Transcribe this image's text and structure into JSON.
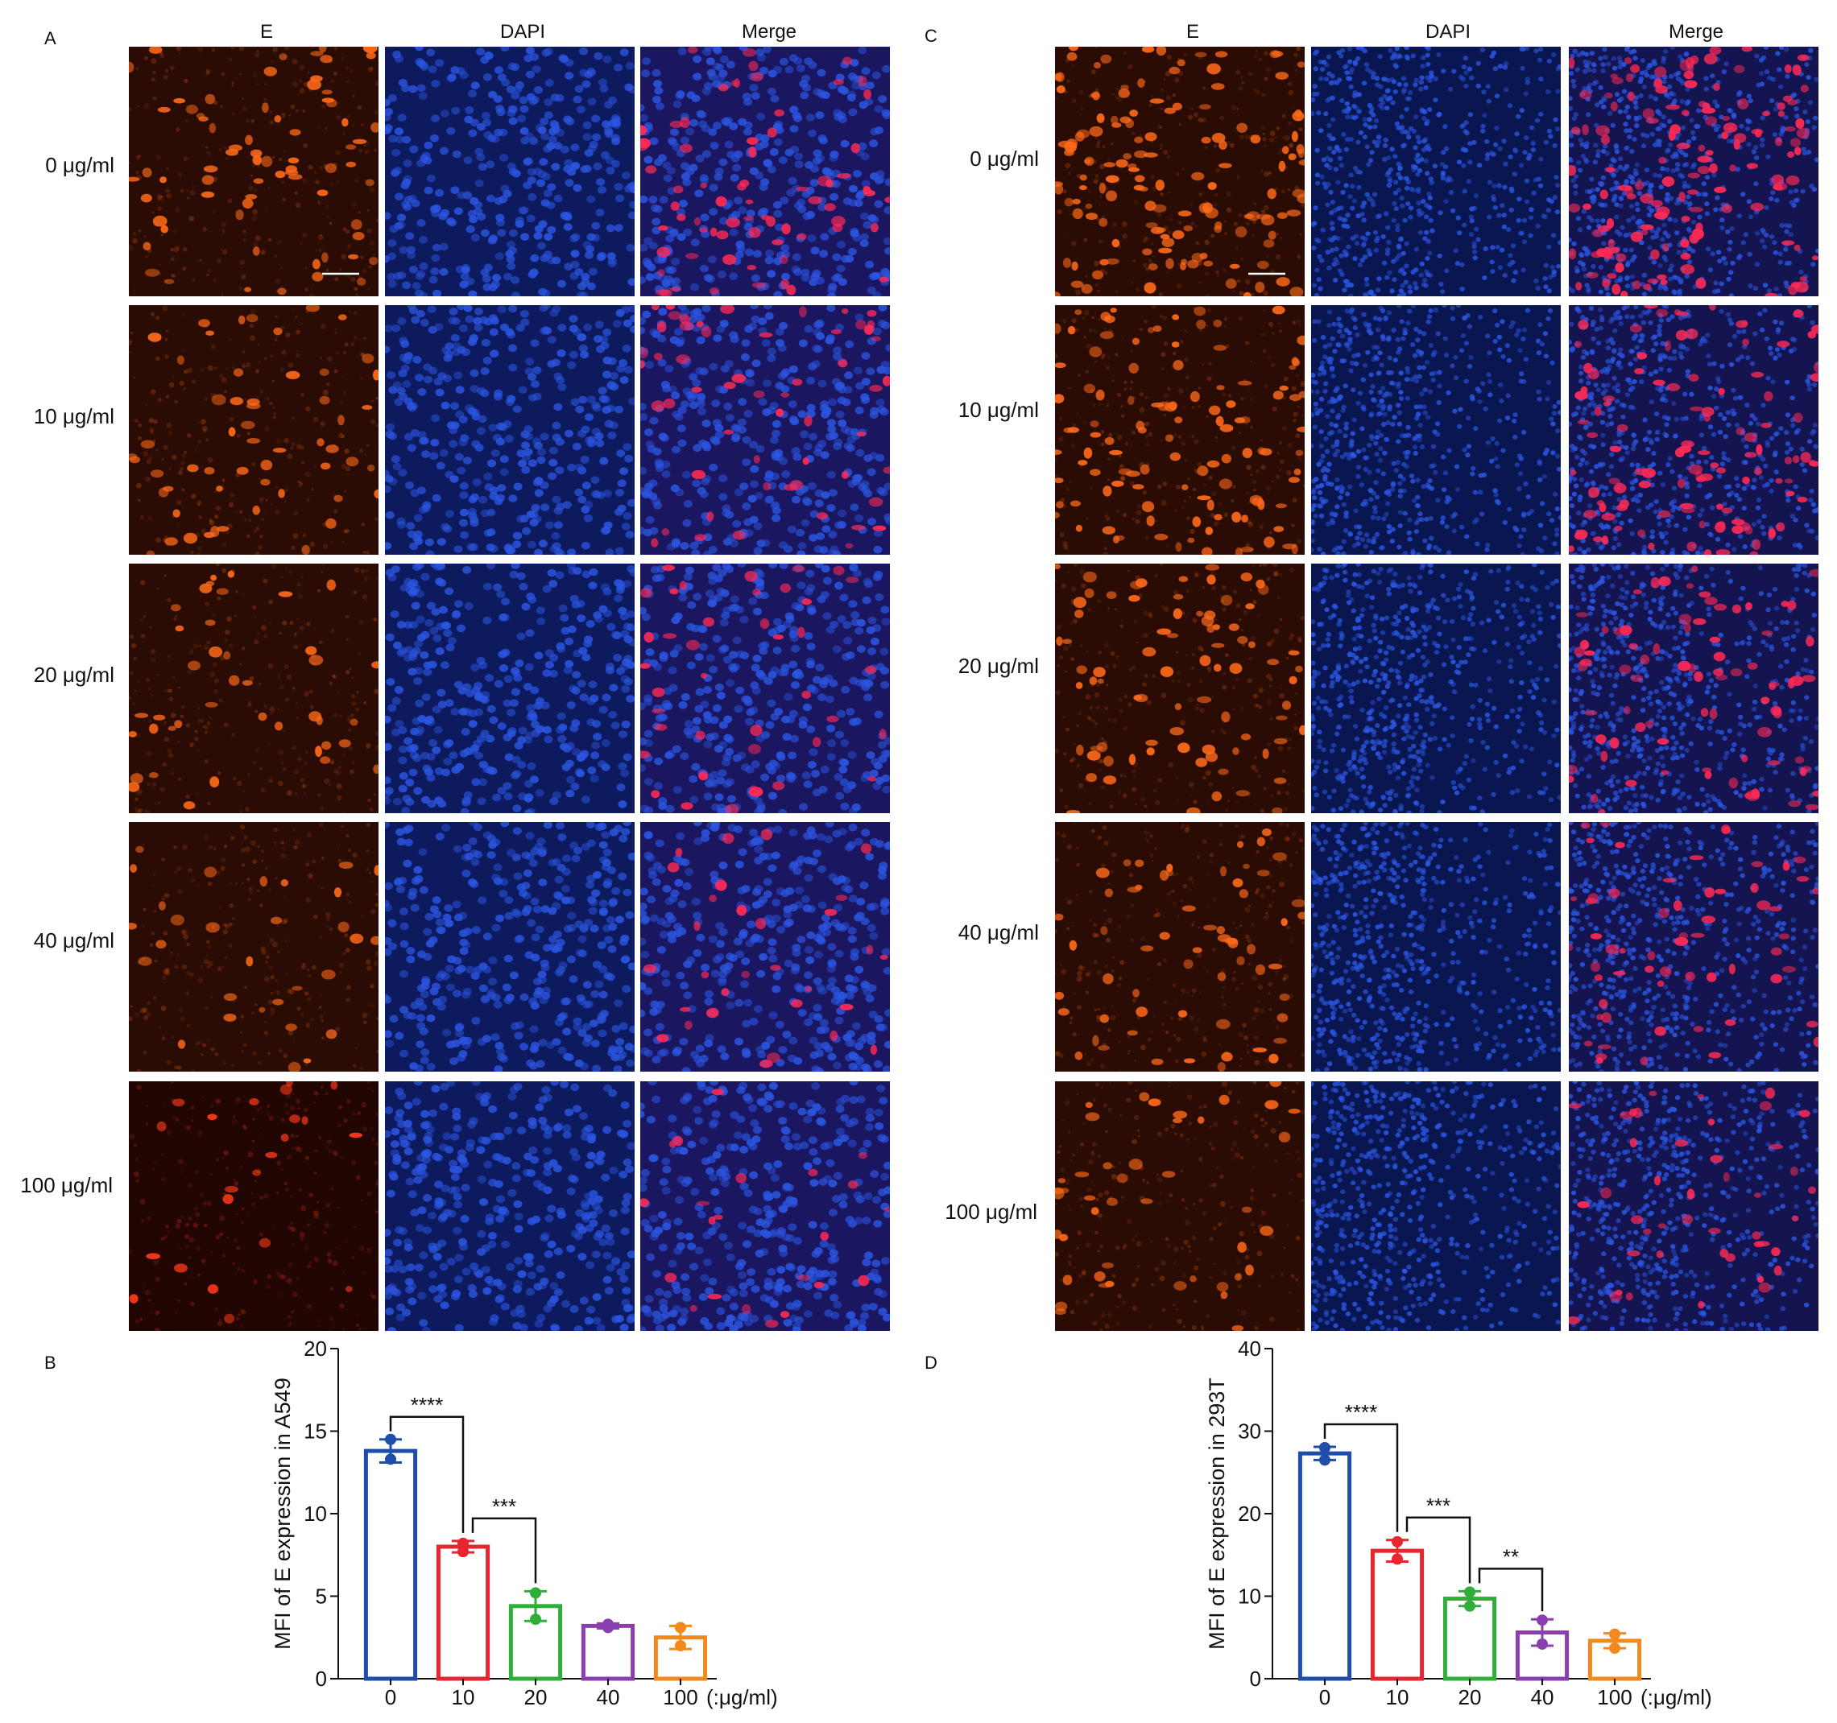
{
  "panels": {
    "A": {
      "letter": "A",
      "columns": [
        "E",
        "DAPI",
        "Merge"
      ],
      "rows": [
        "0 μg/ml",
        "10 μg/ml",
        "20 μg/ml",
        "40 μg/ml",
        "100 μg/ml"
      ],
      "scale_bar": "present"
    },
    "C": {
      "letter": "C",
      "columns": [
        "E",
        "DAPI",
        "Merge"
      ],
      "rows": [
        "0 μg/ml",
        "10 μg/ml",
        "20 μg/ml",
        "40 μg/ml",
        "100 μg/ml"
      ],
      "scale_bar": "present"
    },
    "B": {
      "letter": "B"
    },
    "D": {
      "letter": "D"
    }
  },
  "colors": {
    "stain_E": "#ff6a1a",
    "stain_DAPI": "#2b55e0",
    "merge_red": "#ff2a55",
    "bar_0": "#1f4ea8",
    "bar_10": "#e8262f",
    "bar_20": "#2fae3a",
    "bar_40": "#8a3fb0",
    "bar_100": "#f08a1e"
  },
  "chart_data": [
    {
      "type": "bar",
      "panel": "B",
      "categories": [
        "0",
        "10",
        "20",
        "40",
        "100"
      ],
      "unit_label": "(:μg/ml)",
      "values": [
        13.8,
        8.0,
        4.4,
        3.2,
        2.5
      ],
      "errors": [
        0.7,
        0.35,
        0.9,
        0.15,
        0.7
      ],
      "points": [
        [
          14.5,
          13.3
        ],
        [
          8.2,
          7.7
        ],
        [
          5.2,
          3.6
        ],
        [
          3.3,
          3.1
        ],
        [
          3.1,
          2.0
        ]
      ],
      "ylabel": "MFI of E expression in A549",
      "ylim": [
        0,
        20
      ],
      "yticks": [
        0,
        5,
        10,
        15,
        20
      ],
      "significance": [
        {
          "from": "0",
          "to": "10",
          "label": "****"
        },
        {
          "from": "10",
          "to": "20",
          "label": "***"
        }
      ],
      "colors": [
        "#1f4ea8",
        "#e8262f",
        "#2fae3a",
        "#8a3fb0",
        "#f08a1e"
      ]
    },
    {
      "type": "bar",
      "panel": "D",
      "categories": [
        "0",
        "10",
        "20",
        "40",
        "100"
      ],
      "unit_label": "(:μg/ml)",
      "values": [
        27.3,
        15.5,
        9.7,
        5.6,
        4.6
      ],
      "errors": [
        0.8,
        1.3,
        0.9,
        1.6,
        0.9
      ],
      "points": [
        [
          28.0,
          26.5
        ],
        [
          16.6,
          14.5
        ],
        [
          10.5,
          8.8
        ],
        [
          7.1,
          4.2
        ],
        [
          5.4,
          3.7
        ]
      ],
      "ylabel": "MFI of E expression in 293T",
      "ylim": [
        0,
        40
      ],
      "yticks": [
        0,
        10,
        20,
        30,
        40
      ],
      "significance": [
        {
          "from": "0",
          "to": "10",
          "label": "****"
        },
        {
          "from": "10",
          "to": "20",
          "label": "***"
        },
        {
          "from": "20",
          "to": "40",
          "label": "**"
        }
      ],
      "colors": [
        "#1f4ea8",
        "#e8262f",
        "#2fae3a",
        "#8a3fb0",
        "#f08a1e"
      ]
    }
  ]
}
